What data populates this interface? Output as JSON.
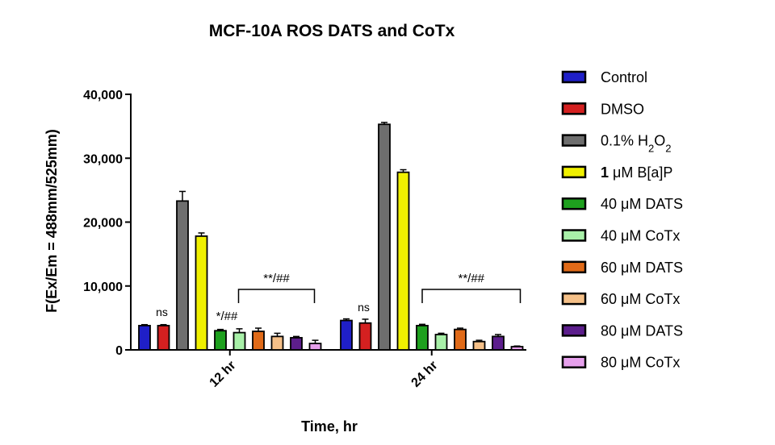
{
  "chart_data": {
    "type": "bar",
    "title": "MCF-10A ROS DATS and CoTx",
    "xlabel": "Time, hr",
    "ylabel": "F(Ex/Em = 488mm/525mm)",
    "ylim": [
      0,
      40000
    ],
    "yticks": [
      0,
      10000,
      20000,
      30000,
      40000
    ],
    "ytick_labels": [
      "0",
      "10,000",
      "20,000",
      "30,000",
      "40,000"
    ],
    "categories": [
      "12 hr",
      "24 hr"
    ],
    "legend_position": "right",
    "series": [
      {
        "name": "Control",
        "label_html": "Control",
        "color": "#1f1fc8",
        "values": [
          3800,
          4600
        ],
        "errors": [
          150,
          250
        ]
      },
      {
        "name": "DMSO",
        "label_html": "DMSO",
        "color": "#d42020",
        "values": [
          3800,
          4200
        ],
        "errors": [
          150,
          600
        ]
      },
      {
        "name": "0.1% H2O2",
        "label_html": "0.1% H<tspan baseline-shift='sub' font-size='13'>2</tspan>O<tspan baseline-shift='sub' font-size='13'>2</tspan>",
        "color": "#6e6e6e",
        "values": [
          23300,
          35300
        ],
        "errors": [
          1500,
          300
        ]
      },
      {
        "name": "1 μM B[a]P",
        "label_html": "<tspan font-weight='bold'>1</tspan> μM B[a]P",
        "color": "#f0f000",
        "values": [
          17800,
          27800
        ],
        "errors": [
          500,
          400
        ]
      },
      {
        "name": "40 μM DATS",
        "label_html": "40 μM DATS",
        "color": "#1ea01e",
        "values": [
          3000,
          3800
        ],
        "errors": [
          200,
          200
        ]
      },
      {
        "name": "40 μM CoTx",
        "label_html": "40 μM CoTx",
        "color": "#a8f0a8",
        "values": [
          2700,
          2400
        ],
        "errors": [
          600,
          200
        ]
      },
      {
        "name": "60 μM DATS",
        "label_html": "60 μM DATS",
        "color": "#e06a18",
        "values": [
          2900,
          3200
        ],
        "errors": [
          500,
          200
        ]
      },
      {
        "name": "60 μM CoTx",
        "label_html": "60 μM CoTx",
        "color": "#f5c088",
        "values": [
          2100,
          1300
        ],
        "errors": [
          500,
          200
        ]
      },
      {
        "name": "80 μM DATS",
        "label_html": "80 μM DATS",
        "color": "#5c1e8c",
        "values": [
          1900,
          2100
        ],
        "errors": [
          200,
          300
        ]
      },
      {
        "name": "80 μM CoTx",
        "label_html": "80 μM CoTx",
        "color": "#e6a0ec",
        "values": [
          1000,
          500
        ],
        "errors": [
          500,
          100
        ]
      }
    ],
    "annotations": {
      "ns_12": "ns",
      "ns_24": "ns",
      "star_12": "*/##",
      "bracket_12": "**/##",
      "bracket_24": "**/##"
    }
  }
}
